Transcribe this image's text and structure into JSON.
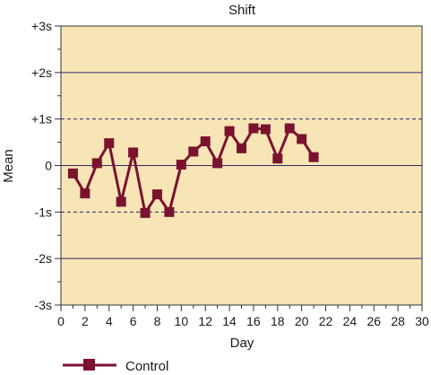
{
  "chart_data": {
    "type": "line",
    "title": "Shift",
    "xlabel": "Day",
    "ylabel": "Mean",
    "xlim": [
      0,
      30
    ],
    "ylim": [
      -3,
      3
    ],
    "x_ticks": [
      "0",
      "2",
      "4",
      "6",
      "8",
      "10",
      "12",
      "14",
      "16",
      "18",
      "20",
      "22",
      "24",
      "26",
      "28",
      "30"
    ],
    "y_ticks": [
      {
        "value": 3,
        "label": "+3s"
      },
      {
        "value": 2,
        "label": "+2s"
      },
      {
        "value": 1,
        "label": "+1s"
      },
      {
        "value": 0,
        "label": "0"
      },
      {
        "value": -1,
        "label": "-1s"
      },
      {
        "value": -2,
        "label": "-2s"
      },
      {
        "value": -3,
        "label": "-3s"
      }
    ],
    "grid": {
      "solid": [
        -2,
        0,
        2
      ],
      "dashed": [
        -1,
        1
      ]
    },
    "legend_position": "bottom-left",
    "series": [
      {
        "name": "Control",
        "color": "#7a1230",
        "x": [
          1,
          2,
          3,
          4,
          5,
          6,
          7,
          8,
          9,
          10,
          11,
          12,
          13,
          14,
          15,
          16,
          17,
          18,
          19,
          20,
          21
        ],
        "y": [
          -0.17,
          -0.6,
          0.05,
          0.48,
          -0.78,
          0.28,
          -1.02,
          -0.62,
          -1.0,
          0.02,
          0.3,
          0.52,
          0.05,
          0.74,
          0.37,
          0.8,
          0.78,
          0.15,
          0.8,
          0.57,
          0.18
        ]
      }
    ],
    "colors": {
      "plot_background": "#f7e5b5",
      "grid_line": "#2a2a6e",
      "axis": "#333333"
    }
  }
}
